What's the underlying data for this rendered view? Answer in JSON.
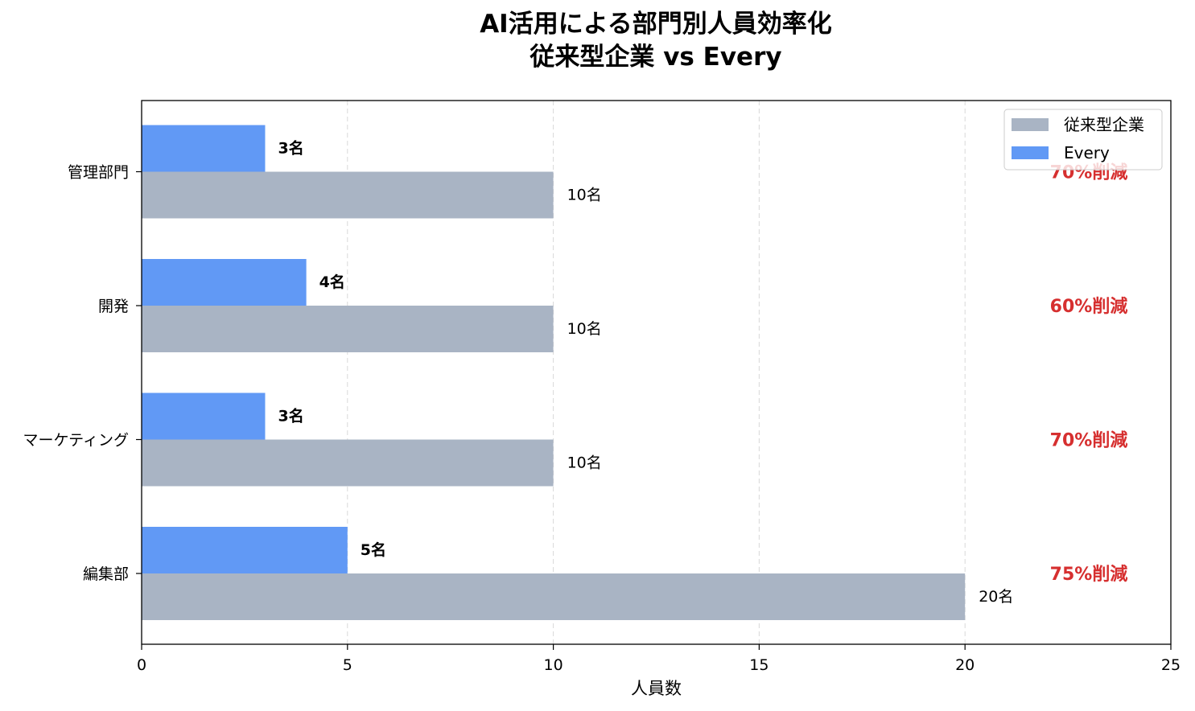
{
  "title_line1": "AI活用による部門別人員効率化",
  "title_line2": "従来型企業 vs Every",
  "chart_data": {
    "type": "bar",
    "orientation": "horizontal",
    "categories": [
      "管理部門",
      "開発",
      "マーケティング",
      "編集部"
    ],
    "series": [
      {
        "name": "従来型企業",
        "values": [
          10,
          10,
          10,
          20
        ],
        "color": "#a9b4c4",
        "labels": [
          "10名",
          "10名",
          "10名",
          "20名"
        ]
      },
      {
        "name": "Every",
        "values": [
          3,
          4,
          3,
          5
        ],
        "color": "#6199f5",
        "labels": [
          "3名",
          "4名",
          "3名",
          "5名"
        ]
      }
    ],
    "annotations": [
      "70%削減",
      "60%削減",
      "70%削減",
      "75%削減"
    ],
    "annotation_color": "#d62f2f",
    "xlabel": "人員数",
    "xlim": [
      0,
      25
    ],
    "xticks": [
      0,
      5,
      10,
      15,
      20,
      25
    ],
    "grid": "x-dashed",
    "legend_position": "top-right"
  }
}
